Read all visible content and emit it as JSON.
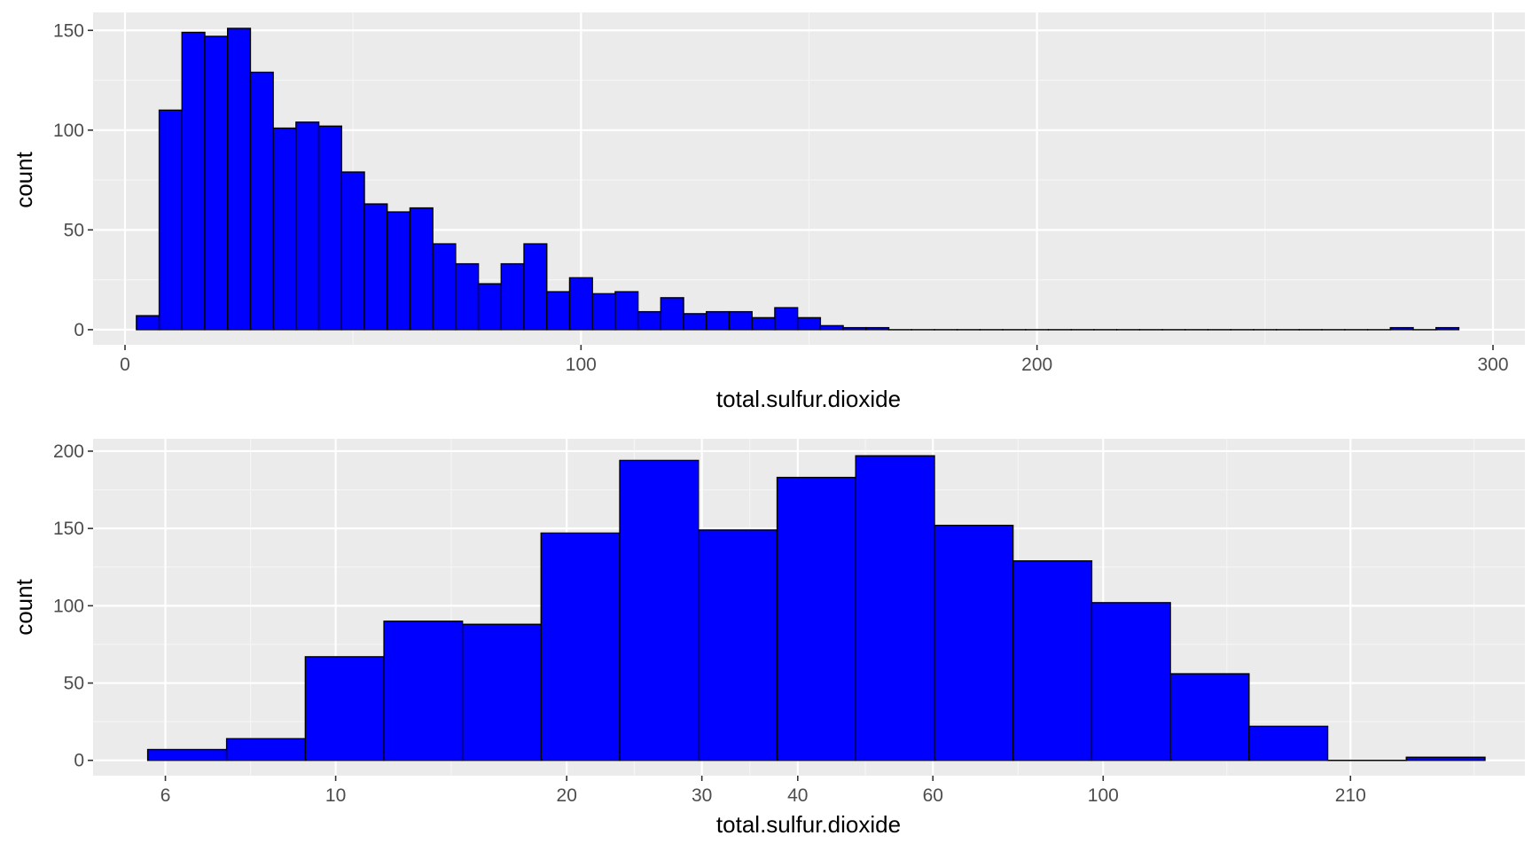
{
  "colors": {
    "panel_background": "#ebebeb",
    "grid_major": "#ffffff",
    "grid_minor": "#f5f5f5",
    "bar_fill": "#0000ff",
    "bar_outline": "#000000",
    "tick_text": "#4d4d4d",
    "axis_text": "#000000"
  },
  "chart_data": [
    {
      "type": "bar",
      "subtype": "histogram",
      "xlabel": "total.sulfur.dioxide",
      "ylabel": "count",
      "xlim": [
        -7,
        307
      ],
      "ylim": [
        -7.6,
        159
      ],
      "x_scale": "linear",
      "x_ticks": [
        0,
        100,
        200,
        300
      ],
      "x_tick_labels": [
        "0",
        "100",
        "200",
        "300"
      ],
      "y_ticks": [
        0,
        50,
        100,
        150
      ],
      "y_tick_labels": [
        "0",
        "50",
        "100",
        "150"
      ],
      "grid": true,
      "bin_width": 5,
      "bin_start": 2.5,
      "values": [
        7,
        110,
        149,
        147,
        151,
        129,
        101,
        104,
        102,
        79,
        63,
        59,
        61,
        43,
        33,
        23,
        33,
        43,
        19,
        26,
        18,
        19,
        9,
        16,
        8,
        9,
        9,
        6,
        11,
        6,
        2,
        1,
        1,
        0,
        0,
        0,
        0,
        0,
        0,
        0,
        0,
        0,
        0,
        0,
        0,
        0,
        0,
        0,
        0,
        0,
        0,
        0,
        0,
        0,
        0,
        1,
        0,
        1
      ]
    },
    {
      "type": "bar",
      "subtype": "histogram",
      "xlabel": "total.sulfur.dioxide",
      "ylabel": "count",
      "x_scale": "log10",
      "xlim": [
        4.83,
        354.4
      ],
      "ylim": [
        -9.9,
        208.0
      ],
      "x_ticks": [
        6,
        10,
        20,
        30,
        40,
        60,
        100,
        210
      ],
      "x_tick_labels": [
        "6",
        "10",
        "20",
        "30",
        "40",
        "60",
        "100",
        "210"
      ],
      "y_ticks": [
        0,
        50,
        100,
        150,
        200
      ],
      "y_tick_labels": [
        "0",
        "50",
        "100",
        "150",
        "200"
      ],
      "grid": true,
      "bin_edges": [
        5.69,
        7.21,
        9.13,
        11.56,
        14.63,
        18.52,
        23.45,
        29.69,
        37.6,
        47.6,
        60.28,
        76.31,
        96.63,
        122.34,
        154.9,
        196.12,
        248.31,
        314.4
      ],
      "values": [
        7,
        14,
        67,
        90,
        88,
        147,
        194,
        149,
        183,
        197,
        152,
        129,
        102,
        56,
        22,
        0,
        2
      ]
    }
  ]
}
